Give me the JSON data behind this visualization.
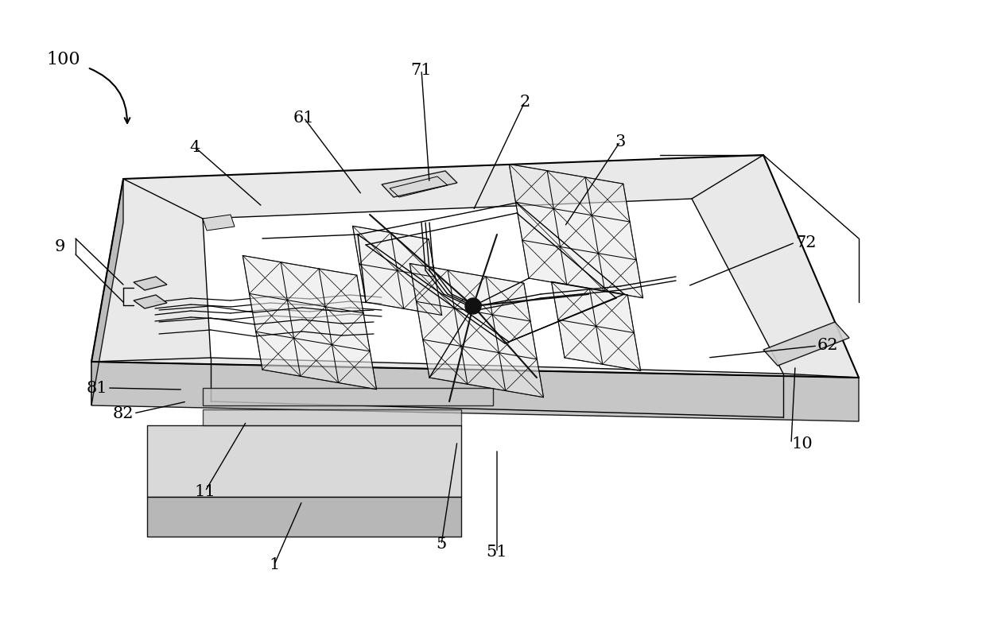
{
  "background_color": "#ffffff",
  "line_color": "#000000",
  "figure_width": 12.4,
  "figure_height": 7.95,
  "dpi": 100,
  "font_size": 15,
  "lw_main": 1.0,
  "lw_thick": 1.5,
  "lw_thin": 0.7
}
